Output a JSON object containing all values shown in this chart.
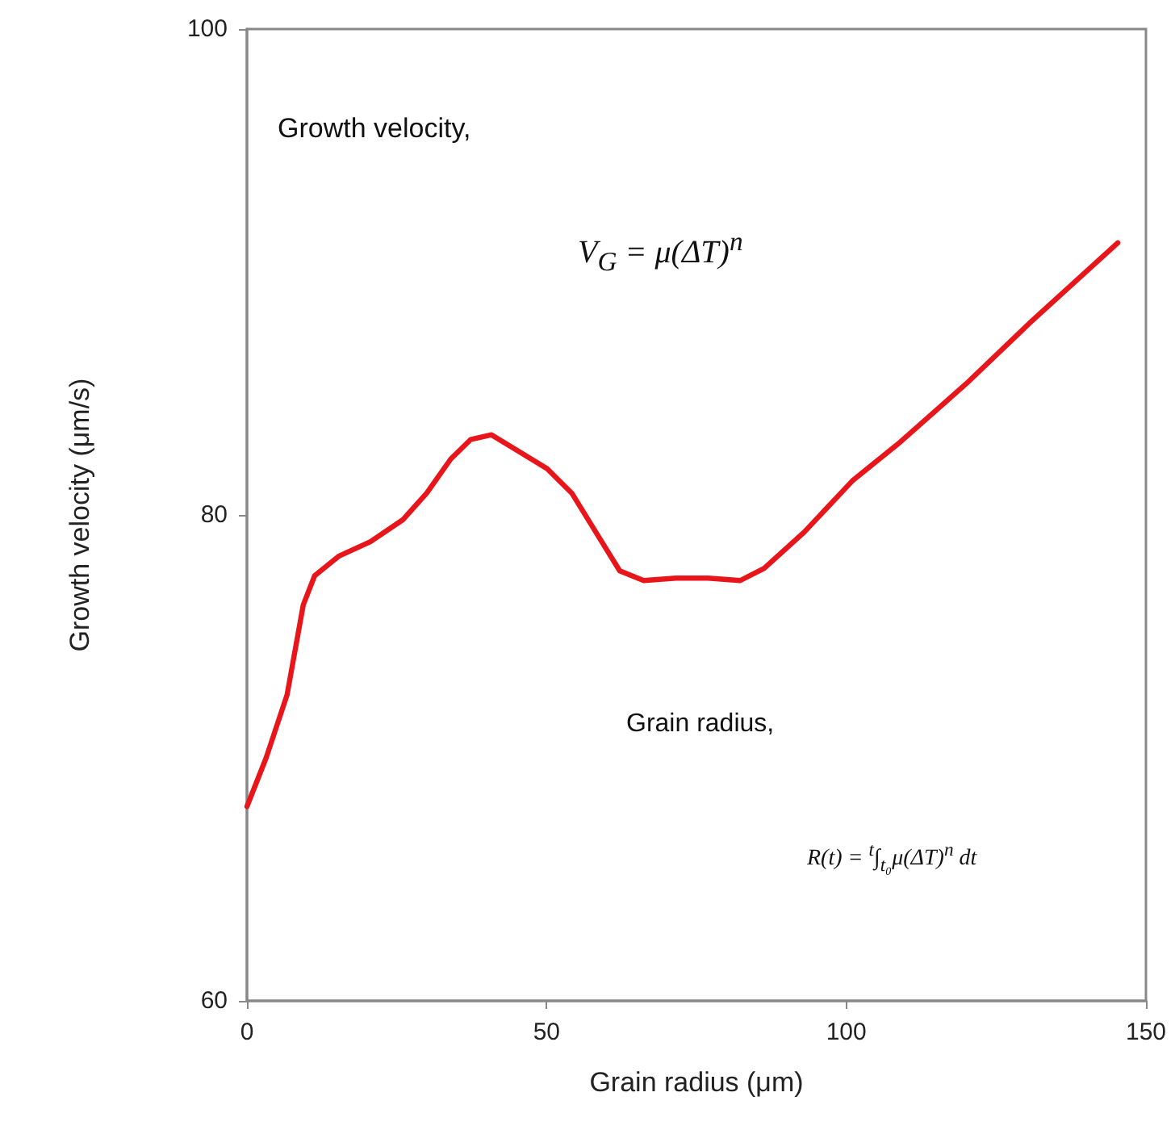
{
  "chart_data": {
    "type": "line",
    "xlabel": "Grain radius (μm)",
    "ylabel": "Growth velocity (μm/s)",
    "x": [
      0,
      3.2,
      6.7,
      9.4,
      11.3,
      15.3,
      20.6,
      26,
      30,
      34,
      37.3,
      40.8,
      44.8,
      50.1,
      54.2,
      58.2,
      62.2,
      66.2,
      71.6,
      76.9,
      82.3,
      86.3,
      93,
      101,
      109,
      120,
      130.6,
      145.3
    ],
    "series": [
      {
        "color": "#e8161b",
        "values": [
          68.0,
          70.0,
          72.6,
          76.3,
          77.5,
          78.3,
          78.9,
          79.8,
          80.9,
          82.3,
          83.1,
          83.3,
          82.7,
          81.9,
          80.9,
          79.3,
          77.7,
          77.3,
          77.4,
          77.4,
          77.3,
          77.8,
          79.3,
          81.4,
          83.0,
          85.4,
          87.9,
          91.2
        ]
      }
    ],
    "xlim": [
      0,
      150
    ],
    "xticks": [
      0,
      50,
      100,
      150
    ],
    "ylim": [
      60,
      100
    ],
    "yticks": [
      60,
      80,
      100
    ],
    "grid": false,
    "marker": "none",
    "line_style": "solid",
    "annotations": [
      "Growth velocity,",
      "V$_{G}$ = μ(ΔT)$^{n}$",
      "Grain radius,",
      "R(t) = $^{t}$∫$_{t₀}$μ(ΔT)$^{n}$ dt"
    ]
  }
}
